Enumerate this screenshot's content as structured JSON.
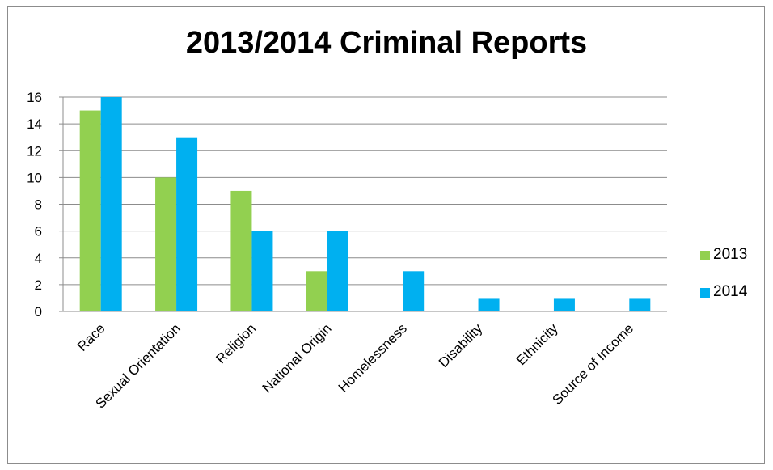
{
  "chart_data": {
    "type": "bar",
    "title": "2013/2014 Criminal Reports",
    "xlabel": "",
    "ylabel": "",
    "categories": [
      "Race",
      "Sexual Orientation",
      "Religion",
      "National Origin",
      "Homelessness",
      "Disability",
      "Ethnicity",
      "Source of Income"
    ],
    "series": [
      {
        "name": "2013",
        "color": "#92d050",
        "values": [
          15,
          10,
          9,
          3,
          0,
          0,
          0,
          0
        ]
      },
      {
        "name": "2014",
        "color": "#00b0f0",
        "values": [
          16,
          13,
          6,
          6,
          3,
          1,
          1,
          1
        ]
      }
    ],
    "ylim": [
      0,
      16
    ],
    "yticks": [
      0,
      2,
      4,
      6,
      8,
      10,
      12,
      14,
      16
    ],
    "grid": true,
    "legend": "right"
  }
}
